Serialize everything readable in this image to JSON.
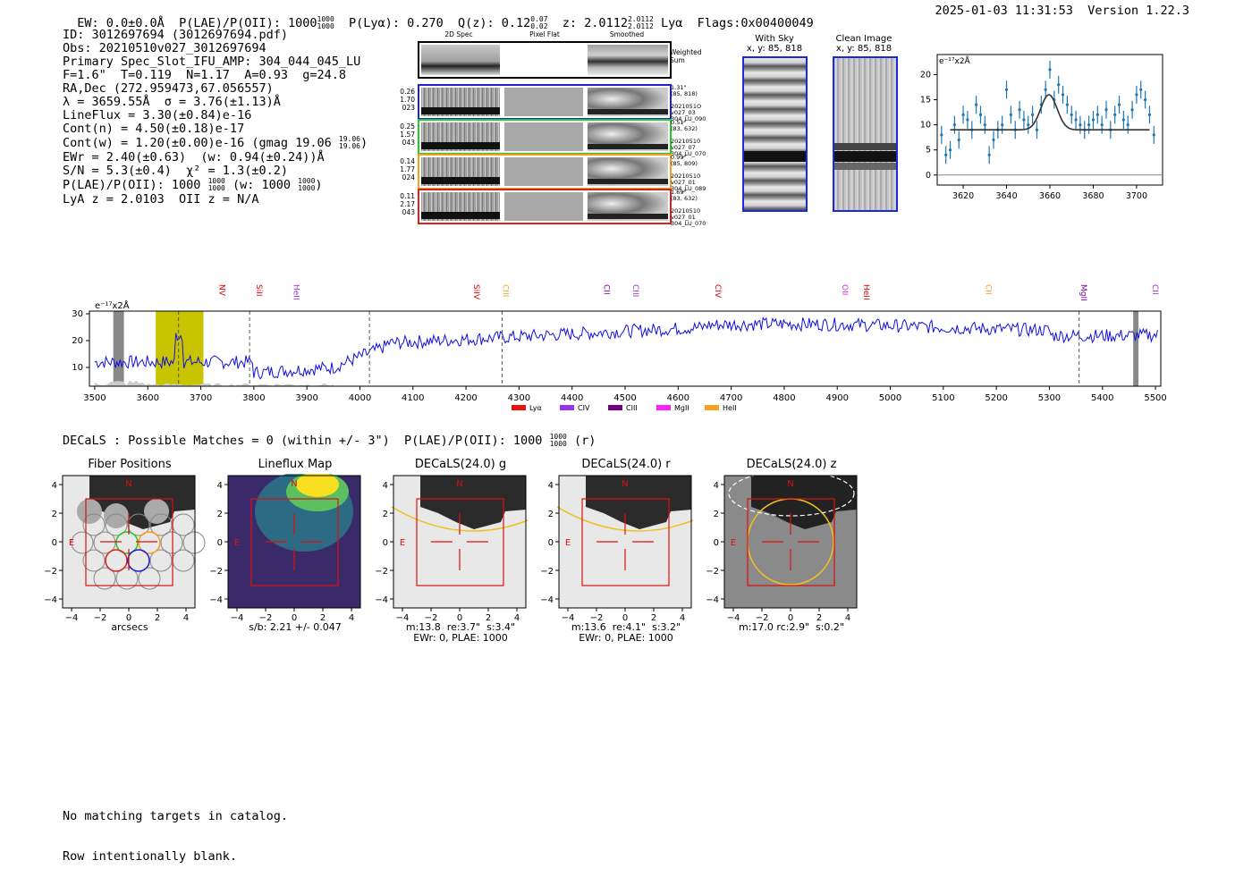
{
  "header": {
    "ew": "EW: 0.0±0.0Å",
    "plae_label": "P(LAE)/P(OII): 1000",
    "plae_hi": "1000",
    "plae_lo": "1000",
    "plya": "P(Lyα): 0.270",
    "qz_label": "Q(z): 0.12",
    "qz_hi": "0.07",
    "qz_lo": "0.02",
    "z_label": "z: 2.0112",
    "z_hi": "2.0112",
    "z_lo": "2.0112",
    "z_line": "Lyα",
    "flags": "Flags:0x00400049",
    "timestamp": "2025-01-03 11:31:53",
    "version": "Version 1.22.3"
  },
  "info": {
    "id": "ID: 3012697694 (3012697694.pdf)",
    "obs": "Obs: 20210510v027_3012697694",
    "primary": "Primary Spec_Slot_IFU_AMP: 304_044_045_LU",
    "fiber": "F=1.6\"  T=0.119  N=1.17  A=0.93  g=24.8",
    "radec": "RA,Dec (272.959473,67.056557)",
    "lambda": "λ = 3659.55Å  σ = 3.76(±1.13)Å",
    "lineflux": "LineFlux = 3.30(±0.84)e-16",
    "contn": "Cont(n) = 4.50(±0.18)e-17",
    "contw": "Cont(w) = 1.20(±0.00)e-16 (gmag 19.06",
    "contw_hi": "19.06",
    "contw_lo": "19.06",
    "contw_end": ")",
    "ewr": "EWr = 2.40(±0.63)  (w: 0.94(±0.24))Å",
    "sn": "S/N = 5.3(±0.4)  χ² = 1.3(±0.2)",
    "plae": "P(LAE)/P(OII): 1000",
    "plae_hi": "1000",
    "plae_lo": "1000",
    "plae_w": " (w: 1000",
    "plae_w_hi": "1000",
    "plae_w_lo": "1000",
    "plae_w_end": ")",
    "lya": "LyA z = 2.0103  OII z = N/A"
  },
  "spec2d": {
    "columns": [
      "2D Spec",
      "Pixel Flat",
      "Smoothed"
    ],
    "weighted_label": "Weighted\nSum",
    "rows": [
      {
        "left": "0.26\n1.70\n023",
        "right": "1.31\"\n(85, 818)\n\n2021051O\nv027_03\n304_LU_090",
        "color": "#2020d0"
      },
      {
        "left": "0.25\n1.57\n043",
        "right": "0.51\"\n(83, 632)\n\n20210510\nv027_07\n304_LU_070",
        "color": "#22cc22"
      },
      {
        "left": "0.14\n1.77\n024",
        "right": "0.99\"\n(85, 809)\n\n20210510\nv027_01\n304_LU_089",
        "color": "#f5a020"
      },
      {
        "left": "0.11\n2.17\n043",
        "right": "1.69\"\n(83, 632)\n\n20210510\nv027_01\n304_LU_070",
        "color": "#dd2020"
      }
    ]
  },
  "sky": {
    "with_sky": "With Sky",
    "with_sky_xy": "x, y: 85, 818",
    "clean": "Clean Image",
    "clean_xy": "x, y: 85, 818"
  },
  "zoom_chart": {
    "unit": "e⁻¹⁷x2Å",
    "x_ticks": [
      "3620",
      "3640",
      "3660",
      "3680",
      "3700"
    ],
    "y_ticks": [
      "0",
      "5",
      "10",
      "15",
      "20"
    ]
  },
  "chart_data": [
    {
      "type": "scatter",
      "title": "",
      "ylabel": "e⁻¹⁷x2Å",
      "xlim": [
        3608,
        3712
      ],
      "ylim": [
        -2,
        24
      ],
      "x": [
        3610,
        3612,
        3614,
        3616,
        3618,
        3620,
        3622,
        3624,
        3626,
        3628,
        3630,
        3632,
        3634,
        3636,
        3638,
        3640,
        3642,
        3644,
        3646,
        3648,
        3650,
        3652,
        3654,
        3656,
        3658,
        3660,
        3662,
        3664,
        3666,
        3668,
        3670,
        3672,
        3674,
        3676,
        3678,
        3680,
        3682,
        3684,
        3686,
        3688,
        3690,
        3692,
        3694,
        3696,
        3698,
        3700,
        3702,
        3704,
        3706,
        3708
      ],
      "y": [
        8,
        4,
        5,
        10,
        7,
        12,
        11,
        9,
        14,
        12,
        10,
        4,
        7,
        9,
        10,
        17,
        12,
        9,
        13,
        11,
        10,
        12,
        9,
        14,
        17,
        21,
        15,
        18,
        16,
        14,
        12,
        11,
        10,
        9,
        10,
        11,
        12,
        10,
        13,
        9,
        12,
        14,
        11,
        10,
        13,
        16,
        17,
        15,
        12,
        8
      ],
      "fit": {
        "type": "gaussian",
        "center": 3659.55,
        "sigma": 3.76,
        "amplitude": 7,
        "baseline": 9
      }
    },
    {
      "type": "line",
      "title": "",
      "ylabel": "e⁻¹⁷x2Å",
      "xlim": [
        3490,
        5510
      ],
      "ylim": [
        3,
        31
      ],
      "x_ticks": [
        3500,
        3600,
        3700,
        3800,
        3900,
        4000,
        4100,
        4200,
        4300,
        4400,
        4500,
        4600,
        4700,
        4800,
        4900,
        5000,
        5100,
        5200,
        5300,
        5400,
        5500
      ],
      "y_ticks": [
        10,
        20,
        30
      ],
      "line_markers": [
        {
          "label": "NV",
          "x": 3730,
          "color": "#e00000"
        },
        {
          "label": "SiII",
          "x": 3800,
          "color": "#e00000"
        },
        {
          "label": "HeII",
          "x": 3870,
          "color": "#9933cc"
        },
        {
          "label": "SiIV",
          "x": 4210,
          "color": "#e00000"
        },
        {
          "label": "CIII",
          "x": 4265,
          "color": "#f5a020"
        },
        {
          "label": "CII",
          "x": 4455,
          "color": "#8800aa"
        },
        {
          "label": "CIII",
          "x": 4510,
          "color": "#9933cc"
        },
        {
          "label": "CIV",
          "x": 4665,
          "color": "#e00000"
        },
        {
          "label": "OII",
          "x": 4905,
          "color": "#dd22dd"
        },
        {
          "label": "HeII",
          "x": 4945,
          "color": "#e00000"
        },
        {
          "label": "CII",
          "x": 5175,
          "color": "#f5a020"
        },
        {
          "label": "MgII",
          "x": 5355,
          "color": "#8800aa"
        },
        {
          "label": "CII",
          "x": 5490,
          "color": "#9933cc"
        }
      ],
      "legend": [
        {
          "label": "Lyα",
          "color": "#ee1111"
        },
        {
          "label": "CIV",
          "color": "#9933ee"
        },
        {
          "label": "CIII",
          "color": "#770088"
        },
        {
          "label": "MgII",
          "color": "#ff22ff"
        },
        {
          "label": "HeII",
          "color": "#f5a020"
        }
      ],
      "highlight_band": [
        3615,
        3705
      ],
      "dashed_lines": [
        3658,
        3792,
        4018,
        4268,
        5356
      ]
    }
  ],
  "decals": {
    "summary": "DECaLS : Possible Matches = 0 (within +/- 3\")  P(LAE)/P(OII): 1000",
    "summary_hi": "1000",
    "summary_lo": "1000",
    "summary_end": " (r)"
  },
  "panels": [
    {
      "title": "Fiber Positions",
      "sub": "arcsecs"
    },
    {
      "title": "Lineflux Map",
      "sub": "s/b: 2.21 +/- 0.047"
    },
    {
      "title": "DECaLS(24.0) g",
      "sub": "m:13.8  re:3.7\"  s:3.4\"\nEWr: 0, PLAE: 1000"
    },
    {
      "title": "DECaLS(24.0) r",
      "sub": "m:13.6  re:4.1\"  s:3.2\"\nEWr: 0, PLAE: 1000"
    },
    {
      "title": "DECaLS(24.0) z",
      "sub": "m:17.0 rc:2.9\"  s:0.2\""
    }
  ],
  "panel_ticks": {
    "x": [
      "−4",
      "−2",
      "0",
      "2",
      "4"
    ],
    "y": [
      "4",
      "2",
      "0",
      "−2",
      "−4"
    ],
    "n": "N",
    "e": "E"
  },
  "footer": {
    "line1": "No matching targets in catalog.",
    "line2": "Row intentionally blank."
  }
}
